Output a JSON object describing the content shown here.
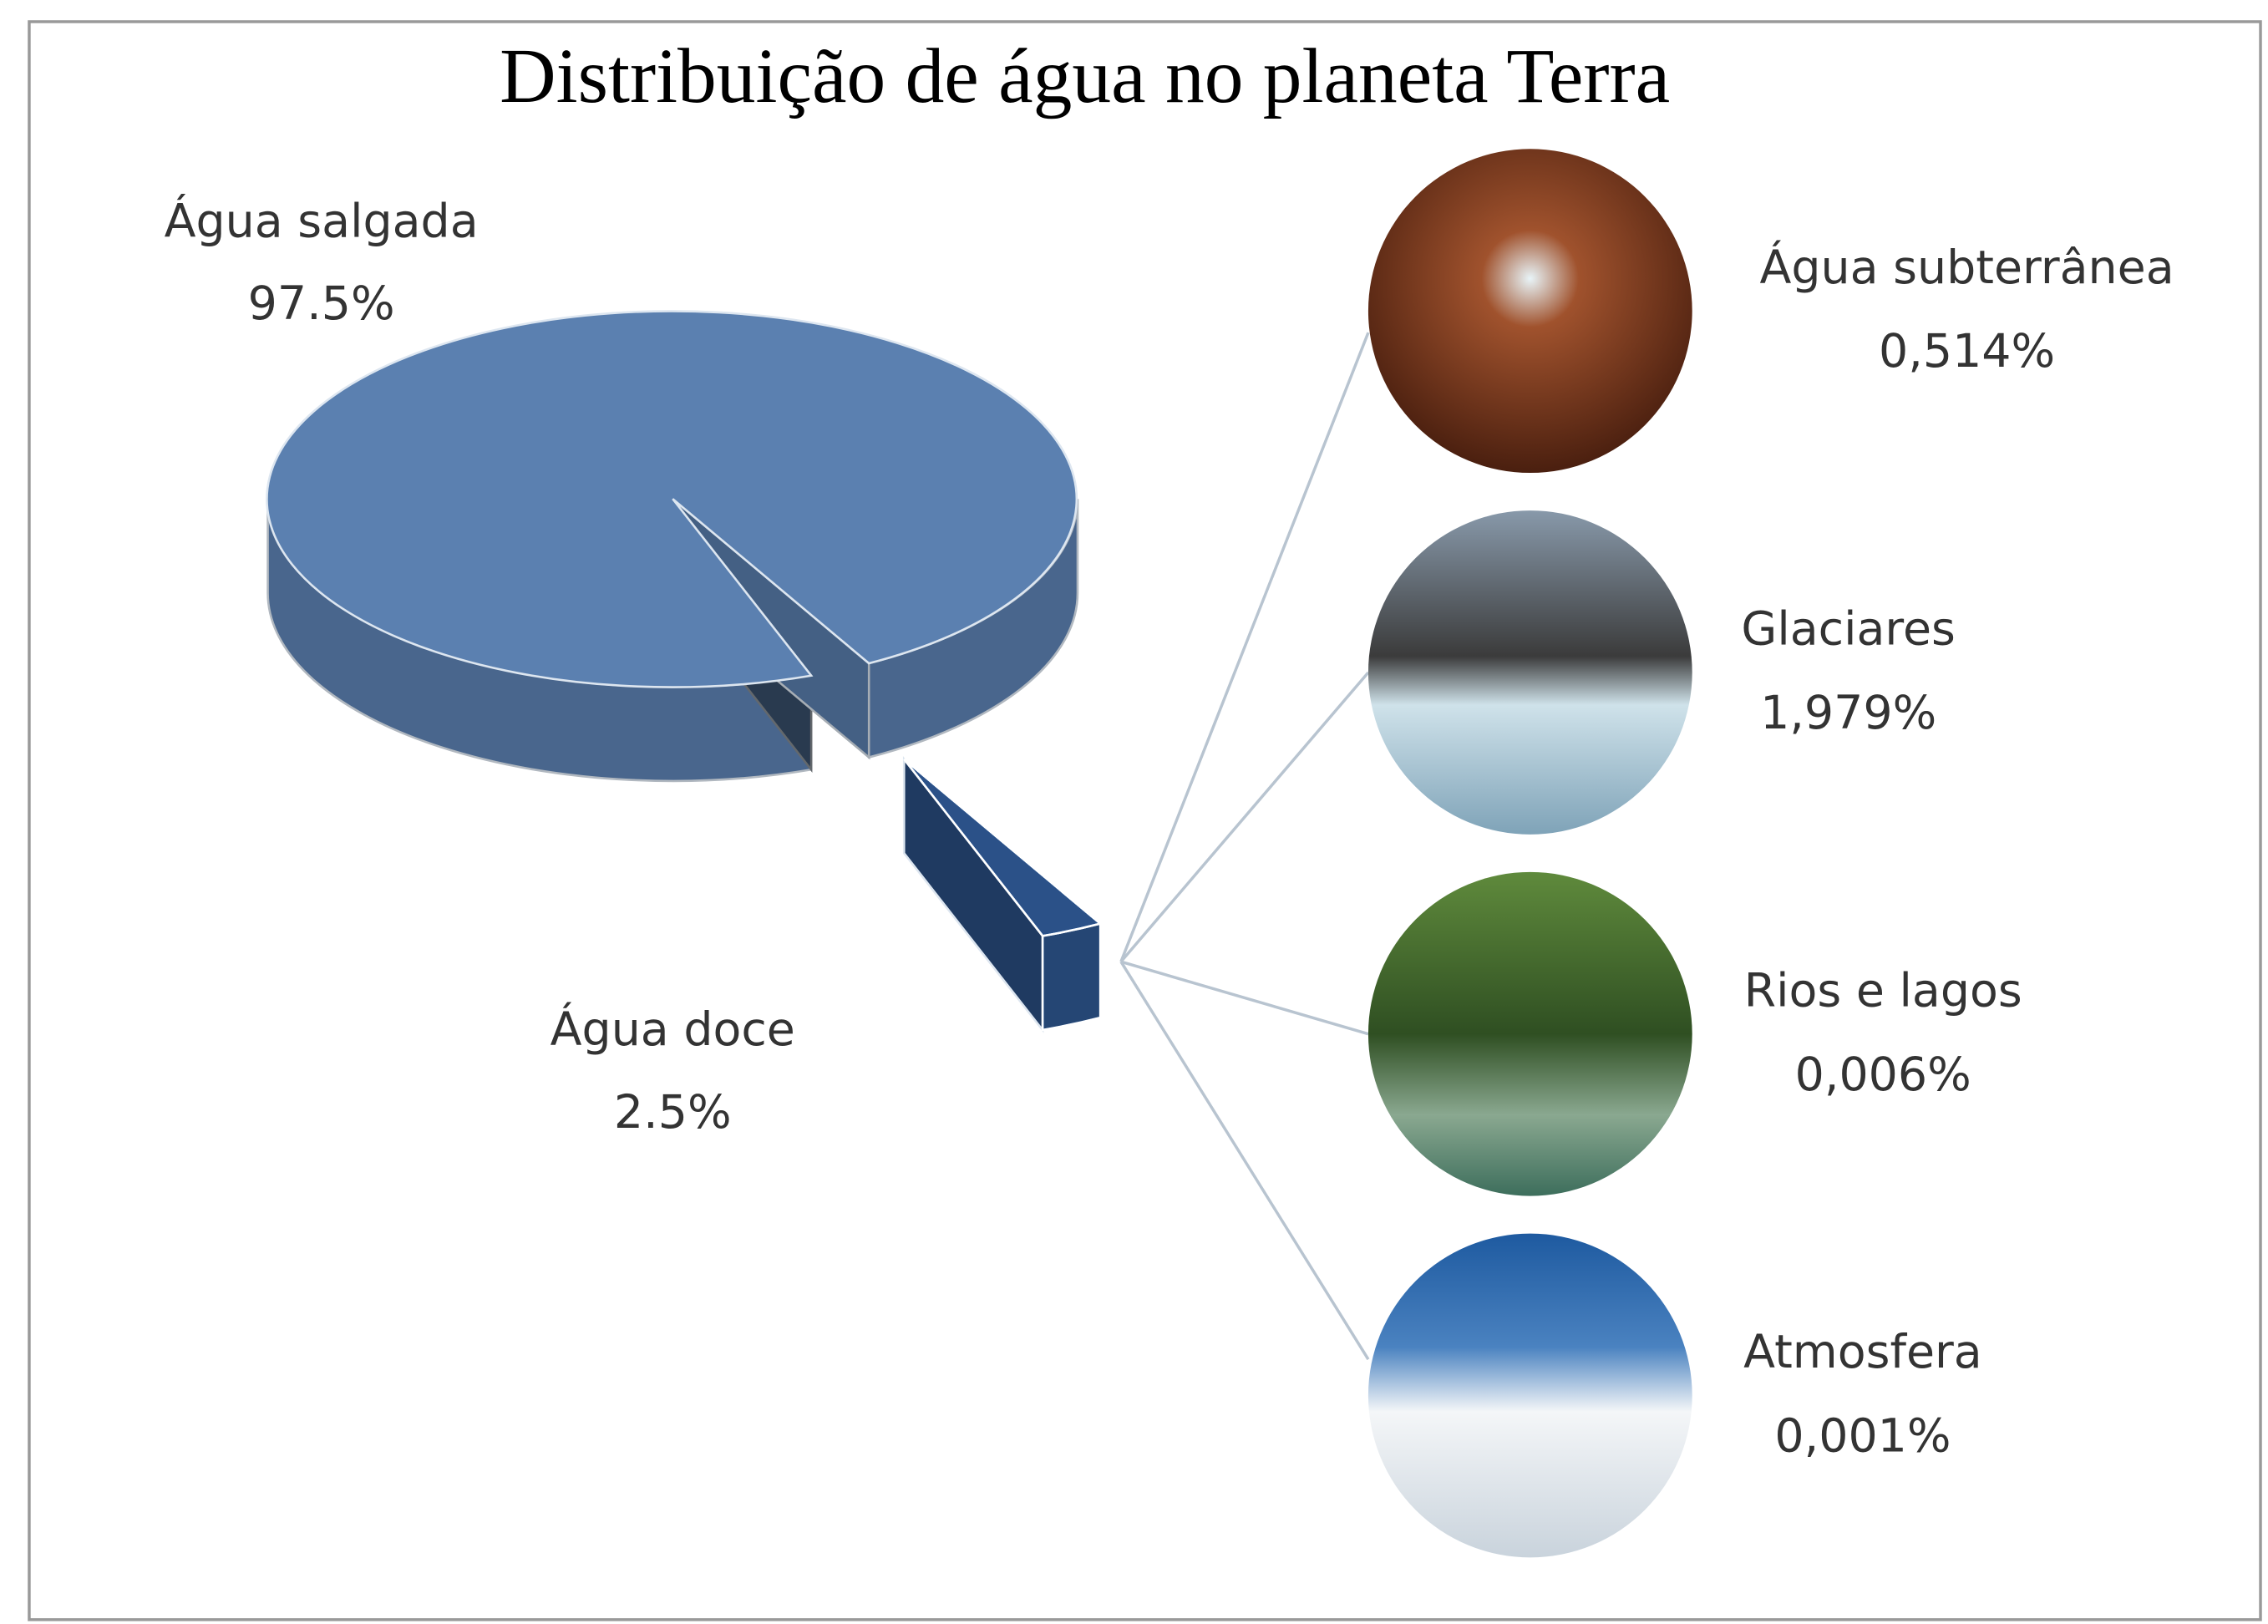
{
  "chart_data": {
    "type": "pie",
    "title": "Distribuição de água no planeta Terra",
    "categories": [
      "Água salgada",
      "Água doce"
    ],
    "values": [
      97.5,
      2.5
    ],
    "value_labels": [
      "97.5%",
      "2.5%"
    ],
    "colors": [
      "#5b80b0",
      "#1f3a61"
    ],
    "breakdown": {
      "categories": [
        "Água subterrânea",
        "Glaciares",
        "Rios e lagos",
        "Atmosfera"
      ],
      "values": [
        0.514,
        1.979,
        0.006,
        0.001
      ],
      "value_labels": [
        "0,514%",
        "1,979%",
        "0,006%",
        "0,001%"
      ]
    }
  }
}
